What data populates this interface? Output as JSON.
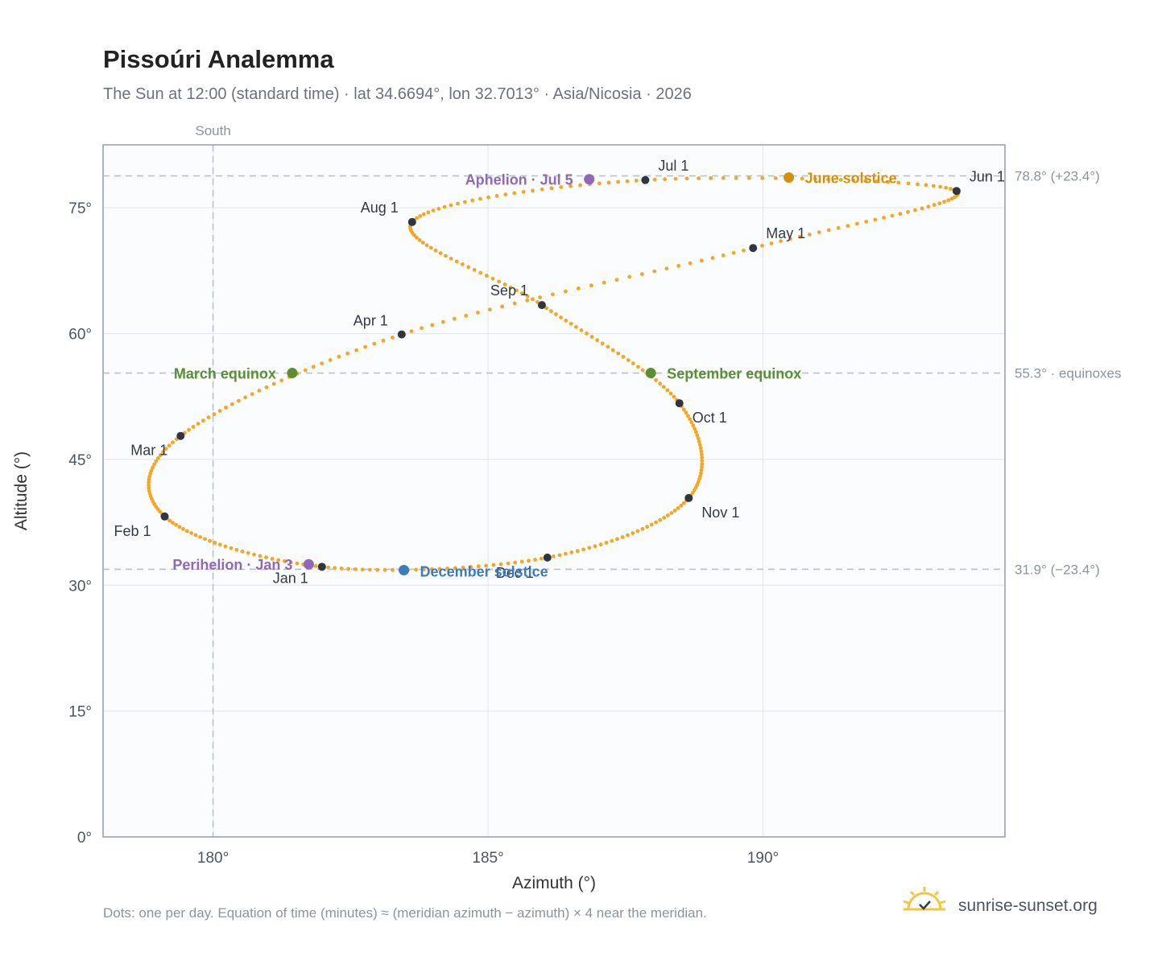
{
  "chart_data": {
    "type": "scatter",
    "title": "Pissoúri Analemma",
    "subtitle": "The Sun at 12:00 (standard time) · lat 34.6694°, lon 32.7013° · Asia/Nicosia · 2026",
    "xlabel": "Azimuth (°)",
    "ylabel": "Altitude (°)",
    "xlim": [
      178.0,
      194.4
    ],
    "ylim": [
      0,
      82.5
    ],
    "x_ticks": [
      {
        "value": 180,
        "label": "180°"
      },
      {
        "value": 185,
        "label": "185°"
      },
      {
        "value": 190,
        "label": "190°"
      }
    ],
    "y_ticks": [
      {
        "value": 0,
        "label": "0°"
      },
      {
        "value": 15,
        "label": "15°"
      },
      {
        "value": 30,
        "label": "30°"
      },
      {
        "value": 45,
        "label": "45°"
      },
      {
        "value": 60,
        "label": "60°"
      },
      {
        "value": 75,
        "label": "75°"
      }
    ],
    "grid": true,
    "reference_lines": [
      {
        "axis": "x",
        "value": 180,
        "label": "South"
      },
      {
        "axis": "y",
        "value": 78.8,
        "label": "78.8° (+23.4°)"
      },
      {
        "axis": "y",
        "value": 55.3,
        "label": "55.3° · equinoxes"
      },
      {
        "axis": "y",
        "value": 31.9,
        "label": "31.9° (−23.4°)"
      }
    ],
    "daily_points": {
      "description": "one per day",
      "color": "#f5a623",
      "anchors": [
        {
          "day": 1,
          "az": 181.98,
          "alt": 32.2
        },
        {
          "day": 32,
          "az": 179.12,
          "alt": 38.2
        },
        {
          "day": 60,
          "az": 179.41,
          "alt": 47.8
        },
        {
          "day": 91,
          "az": 183.43,
          "alt": 59.9
        },
        {
          "day": 121,
          "az": 189.82,
          "alt": 70.2
        },
        {
          "day": 152,
          "az": 193.52,
          "alt": 77.0
        },
        {
          "day": 182,
          "az": 187.86,
          "alt": 78.3
        },
        {
          "day": 213,
          "az": 183.62,
          "alt": 73.3
        },
        {
          "day": 244,
          "az": 185.98,
          "alt": 63.4
        },
        {
          "day": 274,
          "az": 188.48,
          "alt": 51.7
        },
        {
          "day": 305,
          "az": 188.65,
          "alt": 40.4
        },
        {
          "day": 335,
          "az": 186.08,
          "alt": 33.3
        },
        {
          "day": 366,
          "az": 181.98,
          "alt": 32.2
        }
      ]
    },
    "month_markers": [
      {
        "label": "Jan 1",
        "az": 181.98,
        "alt": 32.2,
        "anchor": "end",
        "dx": -17,
        "dy": 20
      },
      {
        "label": "Feb 1",
        "az": 179.12,
        "alt": 38.2,
        "anchor": "end",
        "dx": -17,
        "dy": 24
      },
      {
        "label": "Mar 1",
        "az": 179.41,
        "alt": 47.8,
        "anchor": "end",
        "dx": -16,
        "dy": 24
      },
      {
        "label": "Apr 1",
        "az": 183.43,
        "alt": 59.9,
        "anchor": "end",
        "dx": -17,
        "dy": -11
      },
      {
        "label": "May 1",
        "az": 189.82,
        "alt": 70.2,
        "anchor": "start",
        "dx": 16,
        "dy": -12
      },
      {
        "label": "Jun 1",
        "az": 193.52,
        "alt": 77.0,
        "anchor": "start",
        "dx": 16,
        "dy": -12
      },
      {
        "label": "Jul 1",
        "az": 187.86,
        "alt": 78.3,
        "anchor": "start",
        "dx": 16,
        "dy": -12
      },
      {
        "label": "Aug 1",
        "az": 183.62,
        "alt": 73.3,
        "anchor": "end",
        "dx": -17,
        "dy": -12
      },
      {
        "label": "Sep 1",
        "az": 185.98,
        "alt": 63.4,
        "anchor": "end",
        "dx": -17,
        "dy": -12
      },
      {
        "label": "Oct 1",
        "az": 188.48,
        "alt": 51.7,
        "anchor": "start",
        "dx": 16,
        "dy": 24
      },
      {
        "label": "Nov 1",
        "az": 188.65,
        "alt": 40.4,
        "anchor": "start",
        "dx": 16,
        "dy": 24
      },
      {
        "label": "Dec 1",
        "az": 186.08,
        "alt": 33.3,
        "anchor": "end",
        "dx": -17,
        "dy": 25
      }
    ],
    "events": [
      {
        "label": "June solstice",
        "az": 190.47,
        "alt": 78.6,
        "color": "#d4900e",
        "anchor": "start",
        "dx": 20,
        "dy": 7
      },
      {
        "label": "December solstice",
        "az": 183.47,
        "alt": 31.8,
        "color": "#3b7bbf",
        "anchor": "start",
        "dx": 20,
        "dy": 8
      },
      {
        "label": "March equinox",
        "az": 181.44,
        "alt": 55.3,
        "color": "#5a8f32",
        "anchor": "end",
        "dx": -20,
        "dy": 7
      },
      {
        "label": "September equinox",
        "az": 187.96,
        "alt": 55.3,
        "color": "#5a8f32",
        "anchor": "start",
        "dx": 20,
        "dy": 7
      },
      {
        "label": "Perihelion · Jan 3",
        "az": 181.74,
        "alt": 32.5,
        "color": "#8f68b8",
        "anchor": "end",
        "dx": -20,
        "dy": 7
      },
      {
        "label": "Aphelion · Jul 5",
        "az": 186.84,
        "alt": 78.4,
        "color": "#8f68b8",
        "anchor": "end",
        "dx": -20,
        "dy": 7
      }
    ]
  },
  "footnote": "Dots: one per day. Equation of time (minutes) ≈ (meridian azimuth − azimuth) × 4 near the meridian.",
  "brand": {
    "text": "sunrise-sunset.org",
    "icon": "sun-check-icon",
    "icon_color": "#f5c542"
  }
}
